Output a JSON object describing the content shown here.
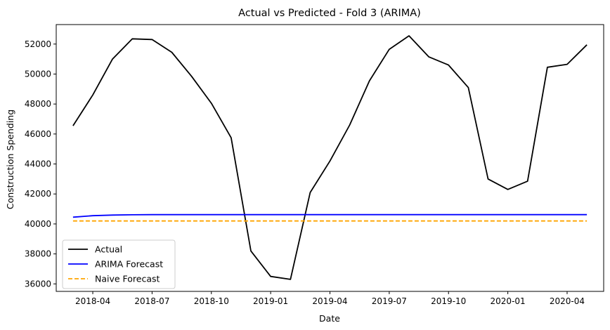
{
  "chart_data": {
    "type": "line",
    "title": "Actual vs Predicted - Fold 3 (ARIMA)",
    "xlabel": "Date",
    "ylabel": "Construction Spending",
    "x": [
      "2018-03",
      "2018-04",
      "2018-05",
      "2018-06",
      "2018-07",
      "2018-08",
      "2018-09",
      "2018-10",
      "2018-11",
      "2018-12",
      "2019-01",
      "2019-02",
      "2019-03",
      "2019-04",
      "2019-05",
      "2019-06",
      "2019-07",
      "2019-08",
      "2019-09",
      "2019-10",
      "2019-11",
      "2019-12",
      "2020-01",
      "2020-02",
      "2020-03",
      "2020-04",
      "2020-05"
    ],
    "x_ticks": [
      "2018-04",
      "2018-07",
      "2018-10",
      "2019-01",
      "2019-04",
      "2019-07",
      "2019-10",
      "2020-01",
      "2020-04"
    ],
    "y_ticks": [
      36000,
      38000,
      40000,
      42000,
      44000,
      46000,
      48000,
      50000,
      52000
    ],
    "ylim": [
      35500,
      53300
    ],
    "grid": false,
    "legend_position": "lower-left",
    "series": [
      {
        "name": "Actual",
        "color": "#000000",
        "style": "solid",
        "values": [
          46550,
          48600,
          51000,
          52350,
          52300,
          51450,
          49850,
          48050,
          45750,
          38200,
          36500,
          36300,
          42100,
          44200,
          46600,
          49550,
          51650,
          52550,
          51150,
          50600,
          49100,
          43000,
          42300,
          42850,
          50450,
          50650,
          51950
        ]
      },
      {
        "name": "ARIMA Forecast",
        "color": "#0000ff",
        "style": "solid",
        "values": [
          40450,
          40550,
          40590,
          40610,
          40620,
          40620,
          40620,
          40620,
          40620,
          40620,
          40620,
          40620,
          40620,
          40620,
          40620,
          40620,
          40620,
          40620,
          40620,
          40620,
          40620,
          40620,
          40620,
          40620,
          40620,
          40620,
          40620
        ]
      },
      {
        "name": "Naive Forecast",
        "color": "#ffa500",
        "style": "dashed",
        "values": [
          40200,
          40200,
          40200,
          40200,
          40200,
          40200,
          40200,
          40200,
          40200,
          40200,
          40200,
          40200,
          40200,
          40200,
          40200,
          40200,
          40200,
          40200,
          40200,
          40200,
          40200,
          40200,
          40200,
          40200,
          40200,
          40200,
          40200
        ]
      }
    ]
  }
}
